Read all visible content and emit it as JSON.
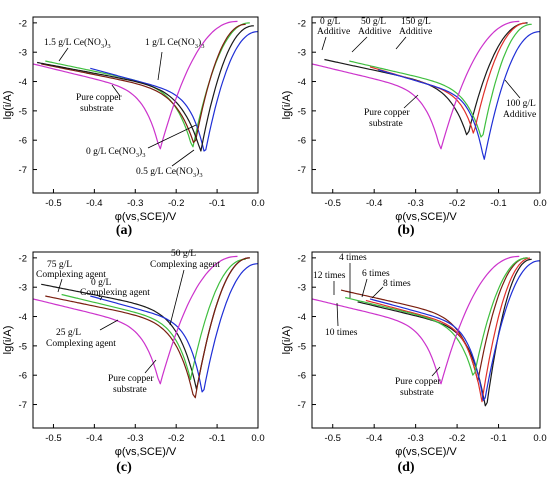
{
  "colors": {
    "black": "#1a1a1a",
    "red": "#e0302a",
    "blue": "#1f2fd6",
    "green": "#3fbf3f",
    "magenta": "#cc33cc",
    "darkred": "#7a1f10"
  },
  "chart_data": [
    {
      "type": "line",
      "panel_label": "(a)",
      "xlabel": "φ(vs,SCE)/V",
      "ylabel": "lg(i/A)",
      "xlim": [
        -0.55,
        0.0
      ],
      "ylim": [
        -7.8,
        -1.8
      ],
      "xticks": [
        -0.5,
        -0.4,
        -0.3,
        -0.2,
        -0.1,
        0.0
      ],
      "yticks": [
        -2,
        -3,
        -4,
        -5,
        -6,
        -7
      ],
      "grid": false,
      "series": [
        {
          "name": "1.5 g/L Ce(NO3)3",
          "color_key": "green",
          "ecorr": -0.16,
          "icorr": -6.3,
          "start": [
            -0.52,
            -3.3
          ],
          "end": [
            -0.02,
            -2.0
          ]
        },
        {
          "name": "1 g/L Ce(NO3)3",
          "color_key": "blue",
          "ecorr": -0.13,
          "icorr": -6.5,
          "start": [
            -0.41,
            -3.55
          ],
          "end": [
            0.0,
            -2.3
          ]
        },
        {
          "name": "0 g/L Ce(NO3)3",
          "color_key": "darkred",
          "ecorr": -0.155,
          "icorr": -6.2,
          "start": [
            -0.53,
            -3.4
          ],
          "end": [
            -0.03,
            -2.05
          ]
        },
        {
          "name": "0.5 g/L Ce(NO3)3",
          "color_key": "black",
          "ecorr": -0.14,
          "icorr": -6.4,
          "start": [
            -0.54,
            -3.35
          ],
          "end": [
            -0.01,
            -2.1
          ]
        },
        {
          "name": "Pure copper substrate",
          "color_key": "magenta",
          "ecorr": -0.24,
          "icorr": -6.35,
          "start": [
            -0.55,
            -3.4
          ],
          "end": [
            -0.05,
            -1.95
          ]
        }
      ],
      "annotations": [
        {
          "lines": [
            "1.5 g/L Ce(NO",
            "3",
            ")",
            "3"
          ],
          "text": "1.5 g/L Ce(NO3)3"
        },
        {
          "text": "1 g/L Ce(NO3)3"
        },
        {
          "text": "Pure copper substrate"
        },
        {
          "text": "0 g/L Ce(NO3)3"
        },
        {
          "text": "0.5 g/L Ce(NO3)3"
        }
      ]
    },
    {
      "type": "line",
      "panel_label": "(b)",
      "xlabel": "φ(vs,SCE)/V",
      "ylabel": "lg(i/A)",
      "xlim": [
        -0.55,
        0.0
      ],
      "ylim": [
        -7.8,
        -1.8
      ],
      "xticks": [
        -0.5,
        -0.4,
        -0.3,
        -0.2,
        -0.1,
        0.0
      ],
      "yticks": [
        -2,
        -3,
        -4,
        -5,
        -6,
        -7
      ],
      "grid": false,
      "series": [
        {
          "name": "0 g/L Additive",
          "color_key": "black",
          "ecorr": -0.175,
          "icorr": -5.9,
          "start": [
            -0.52,
            -3.25
          ],
          "end": [
            -0.03,
            -2.0
          ]
        },
        {
          "name": "50 g/L Additive",
          "color_key": "green",
          "ecorr": -0.14,
          "icorr": -6.0,
          "start": [
            -0.46,
            -3.3
          ],
          "end": [
            -0.02,
            -2.05
          ]
        },
        {
          "name": "150 g/L Additive",
          "color_key": "red",
          "ecorr": -0.16,
          "icorr": -5.8,
          "start": [
            -0.41,
            -3.5
          ],
          "end": [
            -0.03,
            -2.0
          ]
        },
        {
          "name": "100 g/L Additive",
          "color_key": "blue",
          "ecorr": -0.135,
          "icorr": -6.7,
          "start": [
            -0.39,
            -3.6
          ],
          "end": [
            0.0,
            -2.3
          ]
        },
        {
          "name": "Pure copper substrate",
          "color_key": "magenta",
          "ecorr": -0.24,
          "icorr": -6.35,
          "start": [
            -0.55,
            -3.4
          ],
          "end": [
            -0.05,
            -1.95
          ]
        }
      ],
      "annotations": [
        {
          "text": "0 g/L Additive"
        },
        {
          "text": "50 g/L Additive"
        },
        {
          "text": "150 g/L Additive"
        },
        {
          "text": "100 g/L Additive"
        },
        {
          "text": "Pure copper substrate"
        }
      ]
    },
    {
      "type": "line",
      "panel_label": "(c)",
      "xlabel": "φ(vs,SCE)/V",
      "ylabel": "lg(i/A)",
      "xlim": [
        -0.55,
        0.0
      ],
      "ylim": [
        -7.8,
        -1.8
      ],
      "xticks": [
        -0.5,
        -0.4,
        -0.3,
        -0.2,
        -0.1,
        0.0
      ],
      "yticks": [
        -2,
        -3,
        -4,
        -5,
        -6,
        -7
      ],
      "grid": false,
      "series": [
        {
          "name": "75 g/L Complexing agent",
          "color_key": "black",
          "ecorr": -0.15,
          "icorr": -6.5,
          "start": [
            -0.53,
            -2.9
          ],
          "end": [
            -0.02,
            -2.0
          ]
        },
        {
          "name": "0 g/L Complexing agent",
          "color_key": "green",
          "ecorr": -0.165,
          "icorr": -6.15,
          "start": [
            -0.48,
            -3.25
          ],
          "end": [
            -0.03,
            -2.05
          ]
        },
        {
          "name": "50 g/L Complexing agent",
          "color_key": "blue",
          "ecorr": -0.135,
          "icorr": -6.7,
          "start": [
            -0.41,
            -3.3
          ],
          "end": [
            0.0,
            -2.2
          ]
        },
        {
          "name": "25 g/L Complexing agent",
          "color_key": "darkred",
          "ecorr": -0.155,
          "icorr": -6.9,
          "start": [
            -0.52,
            -3.3
          ],
          "end": [
            -0.02,
            -2.0
          ]
        },
        {
          "name": "Pure copper substrate",
          "color_key": "magenta",
          "ecorr": -0.24,
          "icorr": -6.35,
          "start": [
            -0.55,
            -3.4
          ],
          "end": [
            -0.05,
            -1.95
          ]
        }
      ],
      "annotations": [
        {
          "text": "75 g/L Complexing agent"
        },
        {
          "text": "0 g/L Complexing agent"
        },
        {
          "text": "50 g/L Complexing agent"
        },
        {
          "text": "25 g/L Complexing agent"
        },
        {
          "text": "Pure copper substrate"
        }
      ]
    },
    {
      "type": "line",
      "panel_label": "(d)",
      "xlabel": "φ(vs,SCE)/V",
      "ylabel": "lg(i/A)",
      "xlim": [
        -0.55,
        0.0
      ],
      "ylim": [
        -7.8,
        -1.8
      ],
      "xticks": [
        -0.5,
        -0.4,
        -0.3,
        -0.2,
        -0.1,
        0.0
      ],
      "yticks": [
        -2,
        -3,
        -4,
        -5,
        -6,
        -7
      ],
      "grid": false,
      "series": [
        {
          "name": "12 times",
          "color_key": "darkred",
          "ecorr": -0.15,
          "icorr": -6.2,
          "start": [
            -0.48,
            -3.1
          ],
          "end": [
            -0.03,
            -2.0
          ]
        },
        {
          "name": "4 times",
          "color_key": "black",
          "ecorr": -0.13,
          "icorr": -7.2,
          "start": [
            -0.44,
            -3.5
          ],
          "end": [
            -0.02,
            -2.05
          ]
        },
        {
          "name": "6 times",
          "color_key": "red",
          "ecorr": -0.14,
          "icorr": -6.9,
          "start": [
            -0.42,
            -3.45
          ],
          "end": [
            -0.02,
            -2.0
          ]
        },
        {
          "name": "8 times",
          "color_key": "blue",
          "ecorr": -0.135,
          "icorr": -7.0,
          "start": [
            -0.41,
            -3.4
          ],
          "end": [
            0.0,
            -2.1
          ]
        },
        {
          "name": "10 times",
          "color_key": "green",
          "ecorr": -0.16,
          "icorr": -6.1,
          "start": [
            -0.47,
            -3.35
          ],
          "end": [
            -0.03,
            -2.0
          ]
        },
        {
          "name": "Pure copper substrate",
          "color_key": "magenta",
          "ecorr": -0.24,
          "icorr": -6.35,
          "start": [
            -0.55,
            -3.4
          ],
          "end": [
            -0.05,
            -1.95
          ]
        }
      ],
      "annotations": [
        {
          "text": "4 times"
        },
        {
          "text": "12 times"
        },
        {
          "text": "6 times"
        },
        {
          "text": "8 times"
        },
        {
          "text": "10 times"
        },
        {
          "text": "Pure copper substrate"
        }
      ]
    }
  ],
  "labels": {
    "a1": "1.5 g/L Ce(NO",
    "a1sub": "3",
    "a1b": ")",
    "a2": "1 g/L Ce(NO",
    "a2sub": "3",
    "a2b": ")",
    "a3": "Pure copper",
    "a3b": "substrate",
    "a4": "0 g/L Ce(NO",
    "a4sub": "3",
    "a4b": ")",
    "a5": "0.5 g/L Ce(NO",
    "a5sub": "3",
    "a5b": ")",
    "b1": "0 g/L",
    "b1b": "Additive",
    "b2": "50 g/L",
    "b2b": "Additive",
    "b3": "150 g/L",
    "b3b": "Additive",
    "b4": "100 g/L",
    "b4b": "Additive",
    "b5": "Pure copper",
    "b5b": "substrate",
    "c1": "75 g/L",
    "c1b": "Complexing agent",
    "c2": "0 g/L",
    "c2b": "Complexing agent",
    "c3": "50 g/L",
    "c3b": "Complexing agent",
    "c4": "25 g/L",
    "c4b": "Complexing agent",
    "c5": "Pure copper",
    "c5b": "substrate",
    "d1": "4 times",
    "d2": "12 times",
    "d3": "6 times",
    "d4": "8 times",
    "d5": "10 times",
    "d6": "Pure copper",
    "d6b": "substrate"
  }
}
